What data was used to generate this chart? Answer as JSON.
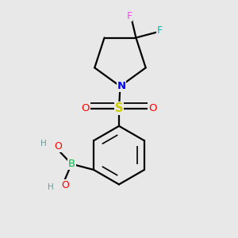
{
  "background_color": "#e8e8e8",
  "bond_color": "#000000",
  "bond_lw": 1.6,
  "colors": {
    "N": "#0000ff",
    "O": "#ff0000",
    "S": "#cccc00",
    "B": "#00bb44",
    "F1": "#ff44ff",
    "F2": "#00bbbb",
    "H": "#6a9a9a"
  },
  "figsize": [
    3.0,
    3.0
  ],
  "dpi": 100
}
